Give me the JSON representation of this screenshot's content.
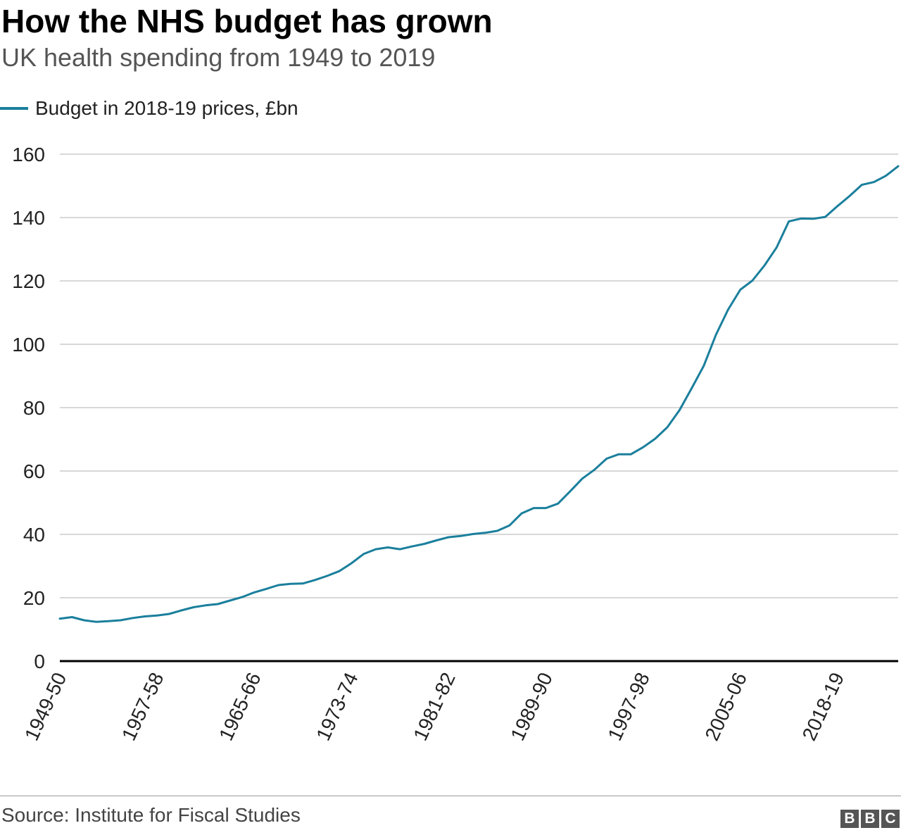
{
  "title": "How the NHS budget has grown",
  "subtitle": "UK health spending from 1949 to 2019",
  "source": "Source: Institute for Fiscal Studies",
  "logo": {
    "letters": [
      "B",
      "B",
      "C"
    ],
    "color": "#555555"
  },
  "colors": {
    "series": "#1a7f9c",
    "grid": "#cccccc",
    "baseline": "#000000"
  },
  "chart_data": {
    "type": "line",
    "title": "How the NHS budget has grown",
    "subtitle": "UK health spending from 1949 to 2019",
    "xlabel": "",
    "ylabel": "",
    "ylim": [
      0,
      160
    ],
    "yticks": [
      0,
      20,
      40,
      60,
      80,
      100,
      120,
      140,
      160
    ],
    "grid": true,
    "legend_position": "top-left",
    "xtick_labels": [
      "1949-50",
      "1957-58",
      "1965-66",
      "1973-74",
      "1981-82",
      "1989-90",
      "1997-98",
      "2005-06",
      "2018-19"
    ],
    "series": [
      {
        "name": "Budget in 2018-19 prices, £bn",
        "color": "#1a7f9c",
        "values": [
          13.4,
          13.9,
          12.9,
          12.4,
          12.6,
          12.9,
          13.6,
          14.1,
          14.4,
          14.9,
          16.0,
          17.0,
          17.6,
          18.0,
          19.1,
          20.2,
          21.7,
          22.8,
          24.0,
          24.4,
          24.5,
          25.6,
          26.9,
          28.4,
          30.9,
          33.8,
          35.3,
          35.9,
          35.3,
          36.2,
          37.0,
          38.1,
          39.1,
          39.5,
          40.1,
          40.5,
          41.1,
          42.8,
          46.6,
          48.3,
          48.3,
          49.7,
          53.6,
          57.6,
          60.4,
          63.9,
          65.3,
          65.3,
          67.5,
          70.2,
          73.8,
          79.2,
          86.1,
          93.2,
          103.0,
          110.9,
          117.2,
          120.1,
          124.9,
          130.6,
          138.8,
          139.7,
          139.6,
          140.2,
          143.6,
          146.8,
          150.3,
          151.2,
          153.2,
          156.2
        ]
      }
    ]
  }
}
